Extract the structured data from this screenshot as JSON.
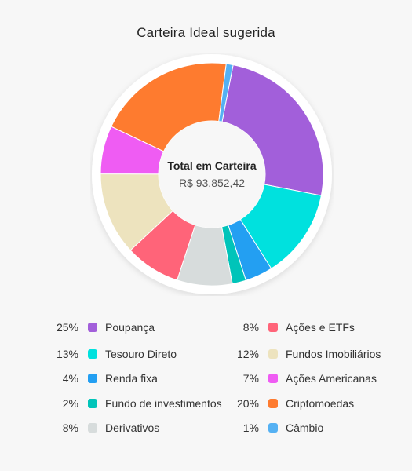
{
  "chart_data": {
    "type": "pie",
    "title": "Carteira Ideal sugerida",
    "center": {
      "label": "Total em Carteira",
      "value": "R$ 93.852,42"
    },
    "series": [
      {
        "name": "Poupança",
        "percent_label": "25%",
        "value": 25,
        "color": "#a25fda"
      },
      {
        "name": "Tesouro Direto",
        "percent_label": "13%",
        "value": 13,
        "color": "#00e1de"
      },
      {
        "name": "Renda fixa",
        "percent_label": "4%",
        "value": 4,
        "color": "#239ff2"
      },
      {
        "name": "Fundo de investimentos",
        "percent_label": "2%",
        "value": 2,
        "color": "#00c4b9"
      },
      {
        "name": "Derivativos",
        "percent_label": "8%",
        "value": 8,
        "color": "#d7dcdc"
      },
      {
        "name": "Ações e ETFs",
        "percent_label": "8%",
        "value": 8,
        "color": "#ff6479"
      },
      {
        "name": "Fundos Imobiliários",
        "percent_label": "12%",
        "value": 12,
        "color": "#ede3be"
      },
      {
        "name": "Ações Americanas",
        "percent_label": "7%",
        "value": 7,
        "color": "#ef5cf3"
      },
      {
        "name": "Criptomoedas",
        "percent_label": "20%",
        "value": 20,
        "color": "#fe7b2f"
      },
      {
        "name": "Câmbio",
        "percent_label": "1%",
        "value": 1,
        "color": "#55b1f3"
      }
    ],
    "chart_order": [
      "Poupança",
      "Tesouro Direto",
      "Renda fixa",
      "Fundo de investimentos",
      "Derivativos",
      "Ações e ETFs",
      "Fundos Imobiliários",
      "Ações Americanas",
      "Criptomoedas",
      "Câmbio"
    ],
    "legend_layout": "two-column, below chart"
  }
}
